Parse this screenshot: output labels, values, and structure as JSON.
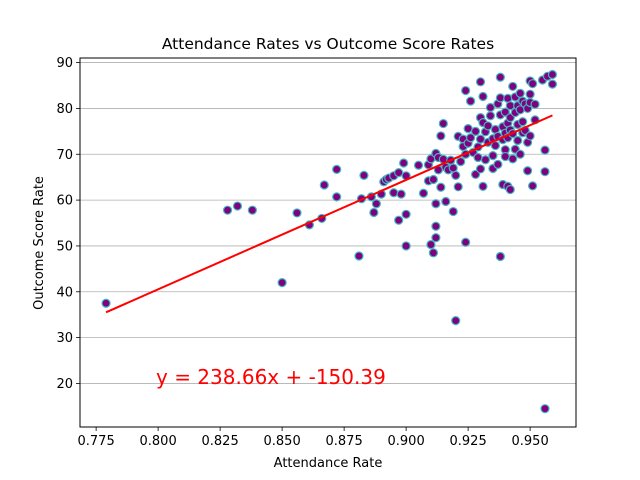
{
  "chart_data": {
    "type": "scatter",
    "title": "Attendance Rates vs Outcome Score Rates",
    "xlabel": "Attendance Rate",
    "ylabel": "Outcome Score Rate",
    "xlim": [
      0.7685,
      0.9685
    ],
    "ylim": [
      10.5,
      91
    ],
    "xticks": [
      "0.775",
      "0.800",
      "0.825",
      "0.850",
      "0.875",
      "0.900",
      "0.925",
      "0.950"
    ],
    "yticks": [
      "20",
      "30",
      "40",
      "50",
      "60",
      "70",
      "80",
      "90"
    ],
    "grid": "horizontal",
    "marker_face_color": "#800080",
    "marker_edge_color": "#40b8c0",
    "regression": {
      "slope": 238.66,
      "intercept": -150.39,
      "x_range": [
        0.779,
        0.959
      ],
      "color": "#ff0000",
      "equation_text": "y = 238.66x + -150.39"
    },
    "points": [
      [
        0.779,
        37.5
      ],
      [
        0.828,
        57.8
      ],
      [
        0.832,
        58.7
      ],
      [
        0.838,
        57.8
      ],
      [
        0.85,
        42.0
      ],
      [
        0.856,
        57.2
      ],
      [
        0.861,
        54.6
      ],
      [
        0.866,
        56.0
      ],
      [
        0.867,
        63.3
      ],
      [
        0.872,
        66.7
      ],
      [
        0.872,
        60.7
      ],
      [
        0.881,
        47.8
      ],
      [
        0.882,
        60.3
      ],
      [
        0.883,
        65.4
      ],
      [
        0.886,
        60.7
      ],
      [
        0.887,
        57.3
      ],
      [
        0.888,
        59.2
      ],
      [
        0.89,
        61.3
      ],
      [
        0.891,
        64.0
      ],
      [
        0.892,
        64.5
      ],
      [
        0.893,
        64.8
      ],
      [
        0.895,
        65.3
      ],
      [
        0.895,
        61.6
      ],
      [
        0.897,
        66.0
      ],
      [
        0.897,
        55.6
      ],
      [
        0.898,
        61.3
      ],
      [
        0.899,
        68.1
      ],
      [
        0.9,
        65.3
      ],
      [
        0.9,
        56.9
      ],
      [
        0.9,
        50.0
      ],
      [
        0.905,
        67.6
      ],
      [
        0.907,
        61.5
      ],
      [
        0.909,
        67.7
      ],
      [
        0.909,
        64.2
      ],
      [
        0.91,
        69.0
      ],
      [
        0.91,
        50.3
      ],
      [
        0.911,
        48.5
      ],
      [
        0.911,
        64.5
      ],
      [
        0.912,
        70.2
      ],
      [
        0.912,
        59.2
      ],
      [
        0.912,
        54.3
      ],
      [
        0.912,
        51.8
      ],
      [
        0.913,
        69.3
      ],
      [
        0.913,
        66.6
      ],
      [
        0.914,
        74.0
      ],
      [
        0.914,
        62.8
      ],
      [
        0.915,
        76.7
      ],
      [
        0.915,
        68.9
      ],
      [
        0.916,
        67.2
      ],
      [
        0.916,
        59.7
      ],
      [
        0.917,
        66.6
      ],
      [
        0.918,
        68.7
      ],
      [
        0.919,
        67.0
      ],
      [
        0.919,
        57.5
      ],
      [
        0.92,
        65.4
      ],
      [
        0.92,
        33.7
      ],
      [
        0.921,
        73.9
      ],
      [
        0.921,
        62.9
      ],
      [
        0.922,
        68.4
      ],
      [
        0.923,
        73.3
      ],
      [
        0.923,
        71.7
      ],
      [
        0.924,
        83.9
      ],
      [
        0.924,
        70.0
      ],
      [
        0.924,
        50.8
      ],
      [
        0.925,
        75.6
      ],
      [
        0.925,
        72.4
      ],
      [
        0.926,
        81.6
      ],
      [
        0.926,
        73.6
      ],
      [
        0.927,
        70.4
      ],
      [
        0.928,
        65.6
      ],
      [
        0.928,
        75.0
      ],
      [
        0.929,
        71.6
      ],
      [
        0.929,
        69.3
      ],
      [
        0.93,
        78.0
      ],
      [
        0.93,
        73.3
      ],
      [
        0.93,
        66.8
      ],
      [
        0.93,
        85.8
      ],
      [
        0.931,
        76.9
      ],
      [
        0.931,
        63.0
      ],
      [
        0.931,
        82.6
      ],
      [
        0.932,
        74.9
      ],
      [
        0.932,
        68.8
      ],
      [
        0.933,
        76.2
      ],
      [
        0.933,
        72.6
      ],
      [
        0.934,
        80.2
      ],
      [
        0.934,
        78.4
      ],
      [
        0.935,
        73.4
      ],
      [
        0.935,
        69.7
      ],
      [
        0.935,
        66.9
      ],
      [
        0.936,
        75.4
      ],
      [
        0.936,
        71.9
      ],
      [
        0.937,
        81.0
      ],
      [
        0.937,
        73.9
      ],
      [
        0.937,
        67.8
      ],
      [
        0.938,
        86.8
      ],
      [
        0.938,
        82.3
      ],
      [
        0.938,
        78.6
      ],
      [
        0.938,
        47.7
      ],
      [
        0.939,
        76.0
      ],
      [
        0.939,
        73.2
      ],
      [
        0.939,
        63.4
      ],
      [
        0.94,
        79.2
      ],
      [
        0.94,
        74.6
      ],
      [
        0.94,
        71.0
      ],
      [
        0.94,
        69.5
      ],
      [
        0.941,
        82.2
      ],
      [
        0.941,
        76.8
      ],
      [
        0.941,
        73.6
      ],
      [
        0.941,
        63.0
      ],
      [
        0.942,
        80.6
      ],
      [
        0.942,
        78.0
      ],
      [
        0.942,
        75.3
      ],
      [
        0.942,
        62.3
      ],
      [
        0.943,
        84.8
      ],
      [
        0.943,
        74.5
      ],
      [
        0.943,
        69.0
      ],
      [
        0.944,
        82.5
      ],
      [
        0.944,
        79.1
      ],
      [
        0.944,
        71.1
      ],
      [
        0.945,
        80.6
      ],
      [
        0.945,
        76.5
      ],
      [
        0.945,
        73.0
      ],
      [
        0.946,
        83.3
      ],
      [
        0.946,
        79.7
      ],
      [
        0.946,
        70.0
      ],
      [
        0.947,
        81.6
      ],
      [
        0.947,
        77.1
      ],
      [
        0.947,
        74.7
      ],
      [
        0.948,
        81.0
      ],
      [
        0.948,
        75.2
      ],
      [
        0.949,
        80.0
      ],
      [
        0.949,
        72.6
      ],
      [
        0.949,
        66.4
      ],
      [
        0.95,
        83.1
      ],
      [
        0.95,
        86.0
      ],
      [
        0.95,
        81.3
      ],
      [
        0.95,
        74.0
      ],
      [
        0.951,
        63.1
      ],
      [
        0.951,
        85.4
      ],
      [
        0.952,
        77.5
      ],
      [
        0.952,
        80.9
      ],
      [
        0.955,
        86.2
      ],
      [
        0.956,
        70.9
      ],
      [
        0.956,
        66.2
      ],
      [
        0.957,
        87.0
      ],
      [
        0.956,
        14.5
      ],
      [
        0.959,
        87.4
      ],
      [
        0.959,
        85.3
      ]
    ]
  }
}
